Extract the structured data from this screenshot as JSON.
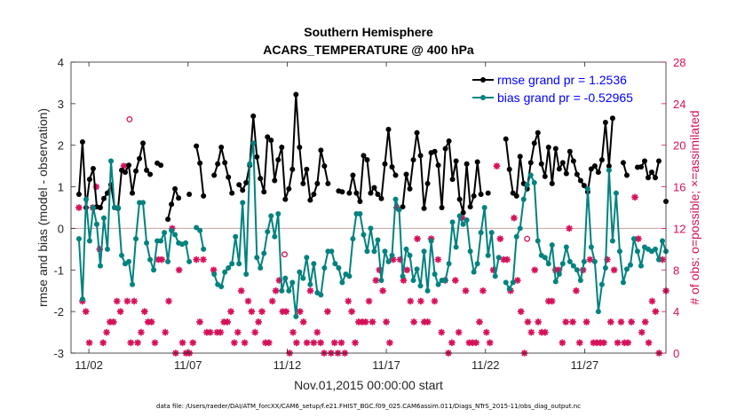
{
  "chart_data": {
    "type": "line",
    "title": "Southern Hemisphere",
    "subtitle": "ACARS_TEMPERATURE @ 400 hPa",
    "xlabel": "Nov.01,2015 00:00:00 start",
    "ylabel_left": "rmse and bias (model - observation)",
    "ylabel_right": "# of obs: o=possible; ×=assimilated",
    "xlim": [
      0.6,
      30.6
    ],
    "ylim_left": [
      -3,
      4
    ],
    "ylim_right": [
      0,
      28
    ],
    "x_ticks": [
      {
        "x": 1.5,
        "label": "11/02"
      },
      {
        "x": 6.5,
        "label": "11/07"
      },
      {
        "x": 11.5,
        "label": "11/12"
      },
      {
        "x": 16.5,
        "label": "11/17"
      },
      {
        "x": 21.5,
        "label": "11/22"
      },
      {
        "x": 26.5,
        "label": "11/27"
      }
    ],
    "y_ticks_left": [
      "4",
      "3",
      "2",
      "1",
      "0",
      "-1",
      "-2",
      "-3"
    ],
    "y_ticks_right": [
      "28",
      "24",
      "20",
      "16",
      "12",
      "8",
      "4",
      "0"
    ],
    "legend": [
      {
        "label": "rmse grand pr = 1.2536",
        "color": "#0000ff",
        "series": "rmse"
      },
      {
        "label": "bias grand pr = -0.52965",
        "color": "#0000ff",
        "series": "bias"
      }
    ],
    "colors": {
      "rmse": "#000000",
      "bias": "#00827f",
      "counts": "#d6105a",
      "zero": "#c9a0a0"
    },
    "series": [
      {
        "name": "rmse",
        "values": [
          0.82,
          2.08,
          0.5,
          1.18,
          1.44,
          0.52,
          0.5,
          0.72,
          0.85,
          1.05,
          0.5,
          0.48,
          1.4,
          1.35,
          1.52,
          0.85,
          1.38,
          1.68,
          2.05,
          1.4,
          1.3,
          null,
          1.57,
          1.52,
          null,
          0.22,
          0.58,
          0.95,
          0.73,
          null,
          null,
          0.82,
          null,
          1.98,
          1.57,
          0.78,
          null,
          null,
          1.28,
          1.55,
          1.95,
          1.58,
          1.23,
          0.85,
          null,
          1.05,
          0.92,
          1.1,
          1.52,
          2.7,
          1.72,
          1.2,
          0.88,
          2.2,
          2.12,
          1.15,
          1.65,
          1.95,
          0.7,
          0.95,
          1.42,
          3.22,
          1.95,
          1.08,
          1.42,
          0.68,
          0.82,
          1.08,
          1.88,
          1.5,
          1.08,
          null,
          null,
          0.9,
          0.88,
          null,
          0.85,
          1.28,
          0.85,
          0.65,
          1.75,
          1.65,
          0.85,
          0.98,
          0.82,
          0.72,
          1.55,
          2.38,
          1.48,
          1.28,
          null,
          0.52,
          1.3,
          0.95,
          1.65,
          2.3,
          1.75,
          0.48,
          1.08,
          1.82,
          1.85,
          1.52,
          0.5,
          1.92,
          2.1,
          1.18,
          1.62,
          0.7,
          0.38,
          1.55,
          0.52,
          0.78,
          1.6,
          0.82,
          null,
          0.85,
          null,
          null,
          null,
          null,
          2.15,
          1.42,
          0.85,
          0.78,
          1.73,
          1.08,
          0.95,
          1.58,
          2.05,
          2.3,
          1.55,
          1.25,
          1.95,
          1.08,
          1.92,
          1.43,
          1.58,
          1.32,
          1.85,
          1.62,
          1.3,
          1.15,
          1.03,
          0.88,
          1.43,
          1.5,
          1.35,
          1.65,
          2.55,
          1.5,
          2.65,
          null,
          null,
          1.58,
          1.28,
          null,
          null,
          1.47,
          1.48,
          1.62,
          1.22,
          1.35,
          1.22,
          1.62,
          null,
          0.65
        ]
      },
      {
        "name": "bias",
        "values": [
          -0.25,
          -1.7,
          0.7,
          -0.3,
          0.5,
          0.1,
          -0.9,
          0.25,
          -0.5,
          1.62,
          0.5,
          0.5,
          -0.65,
          -0.85,
          -0.8,
          -1.35,
          -0.25,
          0.62,
          0.62,
          -0.35,
          -0.75,
          -1.0,
          -0.3,
          -0.3,
          -0.1,
          -0.8,
          -0.05,
          -0.15,
          -0.35,
          -0.38,
          -0.35,
          -0.8,
          null,
          0.02,
          -0.05,
          -0.5,
          null,
          null,
          -1.1,
          -1.35,
          -1.4,
          -1.05,
          -0.95,
          -0.85,
          -0.2,
          -0.85,
          0.62,
          -1.1,
          1.55,
          2.05,
          -0.7,
          -0.95,
          -0.6,
          -0.08,
          0.3,
          -0.2,
          0.35,
          -1.5,
          -1.2,
          -1.5,
          -1.3,
          -2.12,
          -1.05,
          -1.2,
          -0.7,
          -1.35,
          -0.85,
          -1.55,
          -1.6,
          -0.95,
          -0.55,
          -0.55,
          -0.85,
          -0.95,
          -1.3,
          -1.1,
          -1.15,
          -0.25,
          0.35,
          0.35,
          -0.15,
          -0.55,
          0.0,
          -0.55,
          -0.28,
          -1.25,
          -0.55,
          -0.8,
          -0.65,
          0.7,
          0.45,
          -1.15,
          -0.5,
          -0.65,
          -1.25,
          -0.98,
          -1.38,
          -0.55,
          -1.5,
          -0.3,
          -1.1,
          -1.35,
          -1.25,
          -1.25,
          -0.85,
          0.15,
          -0.45,
          0.3,
          0.1,
          0.2,
          -0.55,
          -1.05,
          -0.85,
          -0.1,
          0.5,
          -0.65,
          -0.1,
          -1.15,
          -0.7,
          null,
          -1.3,
          -1.45,
          -1.3,
          -0.2,
          0.0,
          0.7,
          1.05,
          1.28,
          1.1,
          -0.3,
          -0.65,
          -0.7,
          -0.85,
          -0.4,
          -1.28,
          -1.1,
          -0.85,
          -0.45,
          -0.8,
          -0.9,
          -1.0,
          -1.25,
          -0.8,
          0.95,
          -0.45,
          -0.8,
          -2.0,
          -1.35,
          -0.95,
          1.4,
          -0.3,
          0.85,
          -0.55,
          -1.3,
          -0.98,
          -0.88,
          -0.25,
          -0.55,
          -0.9,
          -0.45,
          -0.5,
          -0.55,
          -0.5,
          -0.75,
          -0.3,
          -0.55
        ]
      },
      {
        "name": "assimilated",
        "values": [
          14,
          5,
          4,
          1,
          14,
          16,
          10,
          1,
          2,
          3,
          3,
          5,
          4,
          18,
          5,
          1,
          5,
          1,
          2,
          4,
          3,
          3,
          1,
          9,
          9,
          2,
          5,
          12,
          0,
          8,
          1,
          0,
          0,
          1,
          9,
          3,
          9,
          2,
          2,
          8,
          2,
          2,
          3,
          3,
          4,
          1,
          2,
          6,
          1,
          5,
          4,
          2,
          3,
          4,
          1,
          1,
          5,
          6,
          7,
          4,
          4,
          0,
          2,
          1,
          4,
          3,
          1,
          6,
          1,
          2,
          1,
          0,
          4,
          0,
          1,
          0,
          1,
          0,
          5,
          4,
          1,
          3,
          3,
          3,
          5,
          3,
          7,
          8,
          6,
          3,
          1,
          9,
          14,
          9,
          7,
          8,
          5,
          3,
          11,
          5,
          3,
          3,
          11,
          5,
          9,
          2,
          7,
          0,
          1,
          7,
          2,
          13,
          6,
          1,
          1,
          1,
          3,
          6,
          2,
          1,
          8,
          18,
          11,
          9,
          9,
          6,
          13,
          7,
          4,
          0,
          3,
          2,
          8,
          3,
          2,
          2,
          5,
          5,
          8,
          8,
          1,
          3,
          12,
          3,
          6,
          1,
          8,
          3,
          9,
          1,
          1,
          1,
          1,
          9,
          3,
          8,
          1,
          3,
          1,
          1,
          3,
          15,
          11,
          2,
          3,
          1,
          5,
          4,
          0,
          9,
          6
        ]
      },
      {
        "name": "possible",
        "values": [
          22.5,
          9.5,
          11.0
        ],
        "x": [
          3.55,
          11.37,
          23.6
        ]
      }
    ]
  }
}
